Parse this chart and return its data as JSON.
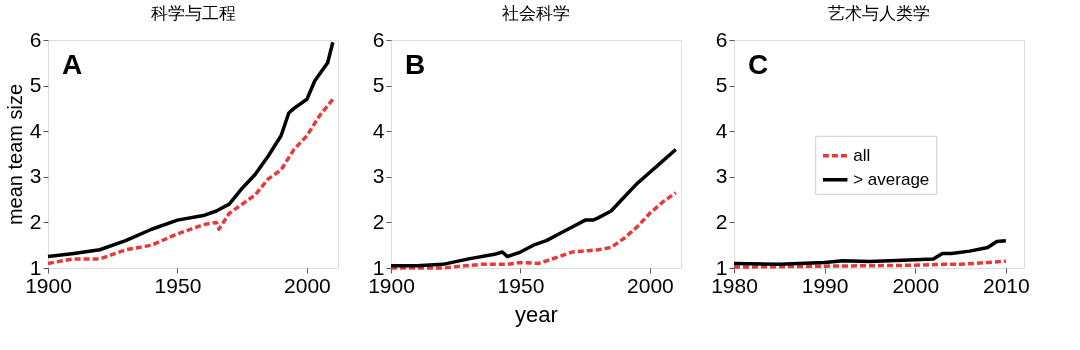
{
  "chart_data": [
    {
      "type": "line",
      "title": "科学与工程",
      "ylabel": "mean team size",
      "annotations": [
        "A"
      ],
      "xlim": [
        1900,
        2012
      ],
      "xticks": [
        1900,
        1950,
        2000
      ],
      "ylim": [
        1,
        6
      ],
      "yticks": [
        1,
        2,
        3,
        4,
        5,
        6
      ],
      "grid": false,
      "legend": false,
      "series": [
        {
          "color": "#e8393a",
          "line_style": "dashed",
          "x": [
            1900,
            1910,
            1915,
            1920,
            1925,
            1930,
            1940,
            1950,
            1960,
            1965,
            1966,
            1970,
            1975,
            1980,
            1985,
            1990,
            1995,
            2000,
            2005,
            2010
          ],
          "values": [
            1.1,
            1.2,
            1.2,
            1.2,
            1.3,
            1.4,
            1.5,
            1.75,
            1.95,
            2.0,
            1.85,
            2.2,
            2.4,
            2.6,
            2.95,
            3.15,
            3.6,
            3.9,
            4.35,
            4.7
          ]
        },
        {
          "color": "#000000",
          "line_style": "solid",
          "x": [
            1900,
            1910,
            1920,
            1930,
            1940,
            1950,
            1960,
            1965,
            1970,
            1975,
            1980,
            1985,
            1990,
            1993,
            1995,
            2000,
            2003,
            2008,
            2010
          ],
          "values": [
            1.25,
            1.32,
            1.4,
            1.6,
            1.85,
            2.05,
            2.15,
            2.25,
            2.4,
            2.75,
            3.05,
            3.45,
            3.9,
            4.4,
            4.5,
            4.7,
            5.1,
            5.5,
            5.95
          ]
        }
      ]
    },
    {
      "type": "line",
      "title": "社会科学",
      "xlabel": "year",
      "annotations": [
        "B"
      ],
      "xlim": [
        1900,
        2012
      ],
      "xticks": [
        1900,
        1950,
        2000
      ],
      "ylim": [
        1,
        6
      ],
      "yticks": [
        1,
        2,
        3,
        4,
        5,
        6
      ],
      "grid": false,
      "legend": false,
      "series": [
        {
          "color": "#e8393a",
          "line_style": "dashed",
          "x": [
            1900,
            1920,
            1925,
            1935,
            1945,
            1950,
            1957,
            1965,
            1970,
            1980,
            1985,
            1990,
            1995,
            2000,
            2005,
            2010
          ],
          "values": [
            1.0,
            1.0,
            1.03,
            1.08,
            1.08,
            1.12,
            1.1,
            1.25,
            1.35,
            1.4,
            1.45,
            1.65,
            1.9,
            2.2,
            2.45,
            2.65
          ]
        },
        {
          "color": "#000000",
          "line_style": "solid",
          "x": [
            1900,
            1910,
            1920,
            1930,
            1940,
            1943,
            1945,
            1950,
            1955,
            1960,
            1965,
            1970,
            1975,
            1978,
            1980,
            1985,
            1990,
            1995,
            2000,
            2005,
            2010
          ],
          "values": [
            1.05,
            1.05,
            1.08,
            1.2,
            1.3,
            1.35,
            1.25,
            1.35,
            1.5,
            1.6,
            1.75,
            1.9,
            2.05,
            2.05,
            2.1,
            2.25,
            2.55,
            2.85,
            3.1,
            3.35,
            3.6
          ]
        }
      ]
    },
    {
      "type": "line",
      "title": "艺术与人类学",
      "annotations": [
        "C"
      ],
      "xlim": [
        1980,
        2012
      ],
      "xticks": [
        1980,
        1990,
        2000,
        2010
      ],
      "ylim": [
        1,
        6
      ],
      "yticks": [
        1,
        2,
        3,
        4,
        5,
        6
      ],
      "grid": false,
      "legend": "center",
      "series": [
        {
          "name": "all",
          "color": "#e8393a",
          "line_style": "dashed",
          "x": [
            1980,
            1990,
            2000,
            2003,
            2005,
            2008,
            2010
          ],
          "values": [
            1.02,
            1.04,
            1.06,
            1.08,
            1.08,
            1.12,
            1.15
          ]
        },
        {
          "name": "> average",
          "color": "#000000",
          "line_style": "solid",
          "x": [
            1980,
            1985,
            1990,
            1992,
            1995,
            2000,
            2002,
            2003,
            2004,
            2006,
            2008,
            2009,
            2010
          ],
          "values": [
            1.1,
            1.08,
            1.12,
            1.16,
            1.14,
            1.18,
            1.2,
            1.32,
            1.32,
            1.37,
            1.45,
            1.58,
            1.6
          ]
        }
      ]
    }
  ]
}
